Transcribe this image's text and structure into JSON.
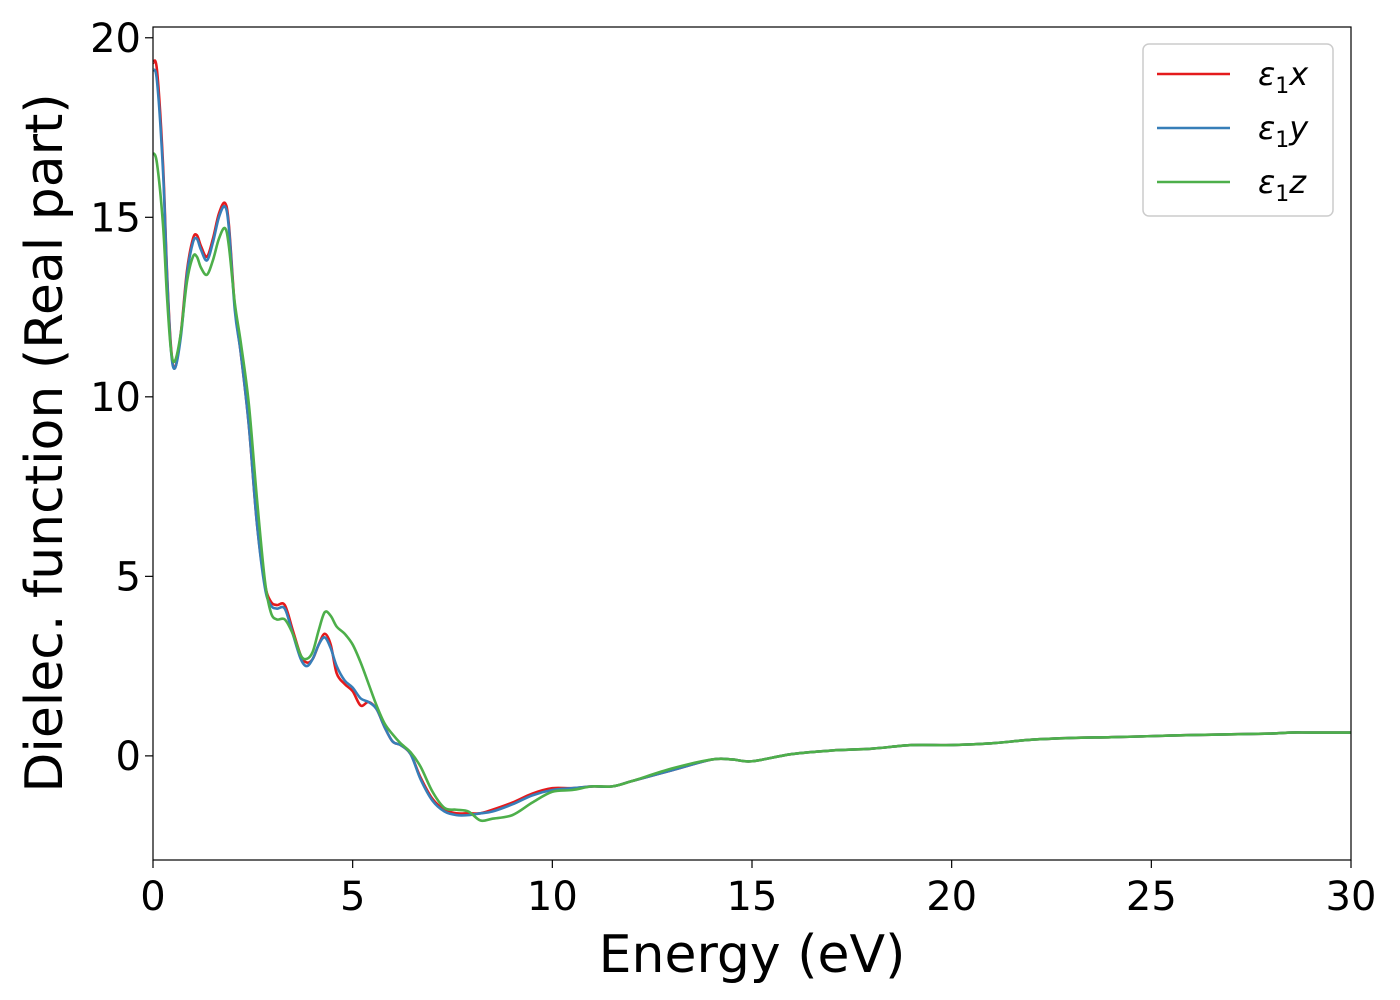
{
  "chart_data": {
    "type": "line",
    "xlabel": "Energy (eV)",
    "ylabel": "Dielec. function (Real part)",
    "xlim": [
      0,
      30
    ],
    "ylim": [
      -2.9,
      20.3
    ],
    "xticks": [
      0,
      5,
      10,
      15,
      20,
      25,
      30
    ],
    "yticks": [
      0,
      5,
      10,
      15,
      20
    ],
    "xtick_labels": [
      "0",
      "5",
      "10",
      "15",
      "20",
      "25",
      "30"
    ],
    "ytick_labels": [
      "0",
      "5",
      "10",
      "15",
      "20"
    ],
    "grid": false,
    "legend_position": "top-right",
    "legend": [
      {
        "base": "ε",
        "sub": "1",
        "comp": "x"
      },
      {
        "base": "ε",
        "sub": "1",
        "comp": "y"
      },
      {
        "base": "ε",
        "sub": "1",
        "comp": "z"
      }
    ],
    "x": [
      0,
      0.1,
      0.25,
      0.35,
      0.45,
      0.55,
      0.7,
      0.85,
      1.0,
      1.1,
      1.2,
      1.35,
      1.5,
      1.65,
      1.8,
      1.9,
      2.05,
      2.2,
      2.4,
      2.6,
      2.8,
      2.95,
      3.1,
      3.3,
      3.5,
      3.7,
      3.85,
      4.0,
      4.15,
      4.3,
      4.45,
      4.6,
      4.8,
      5.0,
      5.2,
      5.4,
      5.6,
      5.8,
      6.0,
      6.2,
      6.45,
      6.7,
      7.0,
      7.3,
      7.6,
      7.9,
      8.2,
      8.5,
      9.0,
      9.5,
      10.0,
      10.5,
      11.0,
      11.5,
      12.0,
      13.0,
      14.0,
      14.5,
      15.0,
      16.0,
      17.0,
      18.0,
      19.0,
      20.0,
      21.0,
      22.0,
      23.0,
      24.0,
      25.0,
      26.0,
      27.0,
      28.0,
      28.5,
      29.0,
      30.0
    ],
    "series": [
      {
        "color": "#e41a1c",
        "values": [
          19.3,
          19.1,
          16.5,
          13.5,
          11.4,
          10.8,
          11.8,
          13.5,
          14.4,
          14.5,
          14.2,
          13.9,
          14.4,
          15.1,
          15.4,
          14.8,
          12.5,
          11.2,
          9.2,
          6.5,
          4.8,
          4.3,
          4.2,
          4.2,
          3.5,
          2.8,
          2.6,
          2.7,
          3.1,
          3.4,
          3.1,
          2.3,
          2.0,
          1.8,
          1.4,
          1.5,
          1.3,
          0.8,
          0.4,
          0.3,
          0.05,
          -0.6,
          -1.2,
          -1.5,
          -1.6,
          -1.6,
          -1.6,
          -1.5,
          -1.3,
          -1.05,
          -0.9,
          -0.9,
          -0.85,
          -0.85,
          -0.7,
          -0.4,
          -0.1,
          -0.1,
          -0.15,
          0.05,
          0.15,
          0.2,
          0.3,
          0.3,
          0.35,
          0.45,
          0.5,
          0.52,
          0.55,
          0.58,
          0.6,
          0.62,
          0.65,
          0.65,
          0.65
        ]
      },
      {
        "color": "#377eb8",
        "values": [
          19.1,
          18.8,
          16.3,
          13.4,
          11.3,
          10.8,
          11.7,
          13.4,
          14.3,
          14.4,
          14.1,
          13.8,
          14.3,
          15.0,
          15.3,
          14.7,
          12.4,
          11.2,
          9.2,
          6.5,
          4.7,
          4.2,
          4.1,
          4.1,
          3.4,
          2.7,
          2.5,
          2.7,
          3.1,
          3.3,
          3.0,
          2.5,
          2.1,
          1.9,
          1.6,
          1.5,
          1.3,
          0.8,
          0.4,
          0.3,
          0.05,
          -0.65,
          -1.25,
          -1.55,
          -1.65,
          -1.65,
          -1.6,
          -1.55,
          -1.35,
          -1.1,
          -0.95,
          -0.9,
          -0.85,
          -0.85,
          -0.7,
          -0.4,
          -0.1,
          -0.1,
          -0.15,
          0.05,
          0.15,
          0.2,
          0.3,
          0.3,
          0.35,
          0.45,
          0.5,
          0.52,
          0.55,
          0.58,
          0.6,
          0.62,
          0.65,
          0.65,
          0.65
        ]
      },
      {
        "color": "#4daf4a",
        "values": [
          16.8,
          16.5,
          14.8,
          12.8,
          11.3,
          11.0,
          11.8,
          13.2,
          13.9,
          13.9,
          13.6,
          13.4,
          13.8,
          14.4,
          14.7,
          14.2,
          12.6,
          11.5,
          9.8,
          7.2,
          4.9,
          4.0,
          3.8,
          3.8,
          3.4,
          2.8,
          2.7,
          2.9,
          3.5,
          4.0,
          3.9,
          3.6,
          3.4,
          3.1,
          2.6,
          2.0,
          1.4,
          0.9,
          0.6,
          0.35,
          0.1,
          -0.3,
          -1.0,
          -1.45,
          -1.5,
          -1.55,
          -1.8,
          -1.75,
          -1.65,
          -1.3,
          -1.0,
          -0.95,
          -0.85,
          -0.85,
          -0.7,
          -0.35,
          -0.1,
          -0.1,
          -0.15,
          0.05,
          0.15,
          0.2,
          0.3,
          0.3,
          0.35,
          0.45,
          0.5,
          0.52,
          0.55,
          0.58,
          0.6,
          0.62,
          0.65,
          0.65,
          0.65
        ]
      }
    ]
  }
}
